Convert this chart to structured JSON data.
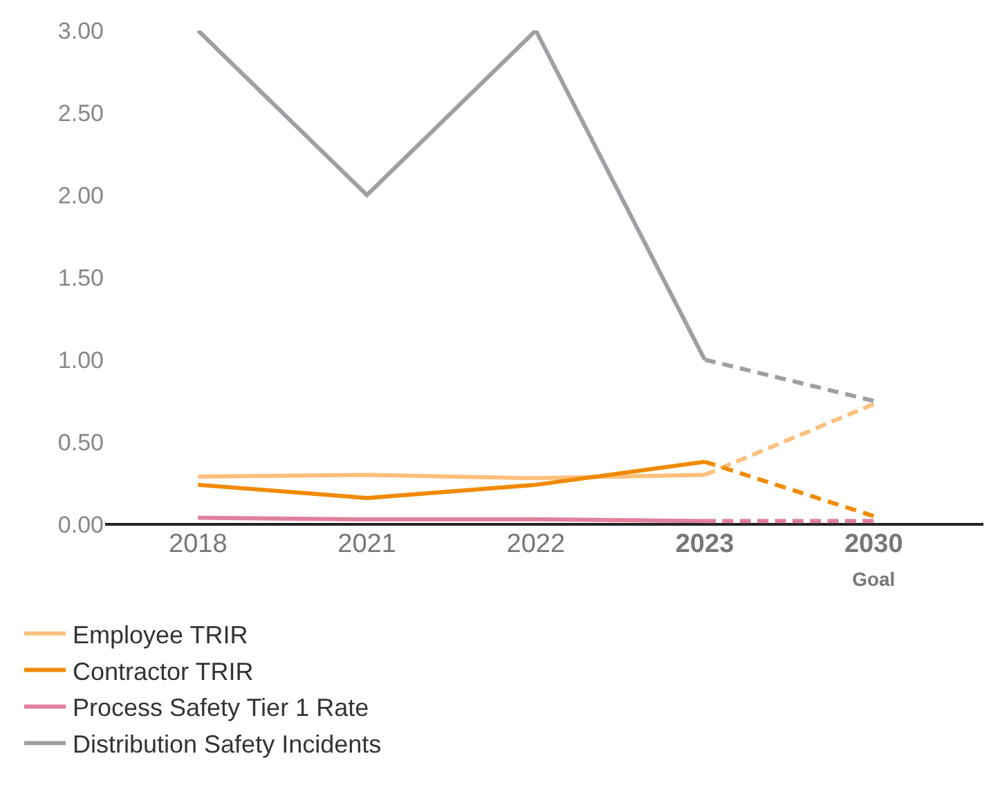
{
  "chart_data": {
    "type": "line",
    "categories": [
      "2018",
      "2021",
      "2022",
      "2023",
      "2030\nGoal"
    ],
    "ylim": [
      0,
      3
    ],
    "yticks": [
      {
        "value": 0,
        "label": "0.00"
      },
      {
        "value": 0.5,
        "label": "0.50"
      },
      {
        "value": 1,
        "label": "1.00"
      },
      {
        "value": 1.5,
        "label": "1.50"
      },
      {
        "value": 2,
        "label": "2.00"
      },
      {
        "value": 2.5,
        "label": "2.50"
      },
      {
        "value": 3,
        "label": "3.00"
      }
    ],
    "grid": false,
    "legend": "bottom left",
    "marker": "none",
    "series": [
      {
        "name": "Employee TRIR",
        "color": "#fcc07e",
        "line_style": "solid",
        "values": [
          0.29,
          0.3,
          0.28,
          0.3,
          null
        ]
      },
      {
        "name": "Contractor TRIR",
        "color": "#f08a00",
        "line_style": "solid",
        "values": [
          0.24,
          0.16,
          0.24,
          0.38,
          null
        ]
      },
      {
        "name": "Process Safety Tier 1 Rate",
        "color": "#e0809c",
        "line_style": "solid",
        "values": [
          0.04,
          0.03,
          0.03,
          0.02,
          null
        ]
      },
      {
        "name": "Distribution Safety Incidents",
        "color": "#a0a0a4",
        "line_style": "solid",
        "values": [
          3.0,
          2.0,
          3.0,
          1.0,
          null
        ]
      },
      {
        "color": "#fcc07e",
        "line_style": "dashed",
        "values": [
          null,
          null,
          null,
          0.3,
          0.73
        ]
      },
      {
        "color": "#f08a00",
        "line_style": "dashed",
        "values": [
          null,
          null,
          null,
          0.38,
          0.05
        ]
      },
      {
        "color": "#e0809c",
        "line_style": "dashed",
        "values": [
          null,
          null,
          null,
          0.02,
          0.02
        ]
      },
      {
        "color": "#a0a0a4",
        "line_style": "dashed",
        "values": [
          null,
          null,
          null,
          1.0,
          0.75
        ]
      }
    ]
  }
}
